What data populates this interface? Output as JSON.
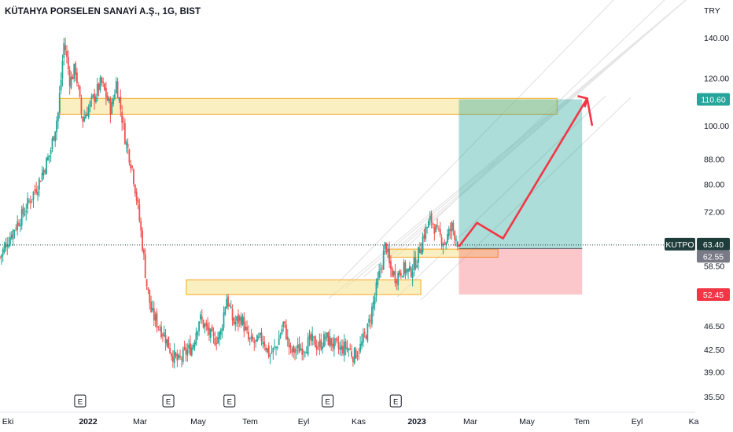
{
  "header": {
    "title": "KÜTAHYA PORSELEN SANAYİ A.Ş., 1G, BIST"
  },
  "chart_data": {
    "type": "candlestick",
    "title": "KÜTAHYA PORSELEN SANAYİ A.Ş., 1G, BIST",
    "currency": "TRY",
    "scale": "log",
    "ylim": [
      34,
      165
    ],
    "y_ticks": [
      "140.00",
      "120.00",
      "100.00",
      "88.00",
      "80.00",
      "72.00",
      "58.50",
      "46.50",
      "42.50",
      "39.00",
      "35.50"
    ],
    "x_ticks": [
      {
        "label": "Eki",
        "bold": false
      },
      {
        "label": "2022",
        "bold": true
      },
      {
        "label": "Mar",
        "bold": false
      },
      {
        "label": "May",
        "bold": false
      },
      {
        "label": "Tem",
        "bold": false
      },
      {
        "label": "Eyl",
        "bold": false
      },
      {
        "label": "Kas",
        "bold": false
      },
      {
        "label": "2023",
        "bold": true
      },
      {
        "label": "Mar",
        "bold": false
      },
      {
        "label": "May",
        "bold": false
      },
      {
        "label": "Tem",
        "bold": false
      },
      {
        "label": "Eyl",
        "bold": false
      },
      {
        "label": "Ka",
        "bold": false
      }
    ],
    "price_labels": [
      {
        "id": "target",
        "value": "110.60",
        "price": 110.6,
        "color": "#26a69a"
      },
      {
        "id": "last",
        "symbol": "KUTPO",
        "value": "63.40",
        "price": 63.4,
        "color": "#1e3d3a"
      },
      {
        "id": "entry",
        "value": "62.55",
        "price": 62.55,
        "color": "#787b86"
      },
      {
        "id": "stop",
        "value": "52.45",
        "price": 52.45,
        "color": "#f23645"
      }
    ],
    "price_path": [
      [
        "2021-10-01",
        60.5
      ],
      [
        "2021-10-12",
        66
      ],
      [
        "2021-10-25",
        72
      ],
      [
        "2021-11-08",
        80
      ],
      [
        "2021-11-20",
        90
      ],
      [
        "2021-11-28",
        105
      ],
      [
        "2021-12-01",
        120
      ],
      [
        "2021-12-04",
        138
      ],
      [
        "2021-12-10",
        118
      ],
      [
        "2021-12-15",
        125
      ],
      [
        "2021-12-22",
        102
      ],
      [
        "2022-01-01",
        110
      ],
      [
        "2022-01-10",
        118
      ],
      [
        "2022-01-15",
        112
      ],
      [
        "2022-01-20",
        106
      ],
      [
        "2022-01-25",
        118
      ],
      [
        "2022-02-03",
        95
      ],
      [
        "2022-02-10",
        85
      ],
      [
        "2022-02-18",
        68
      ],
      [
        "2022-02-24",
        55
      ],
      [
        "2022-03-01",
        49
      ],
      [
        "2022-03-07",
        47
      ],
      [
        "2022-03-14",
        45
      ],
      [
        "2022-03-21",
        42
      ],
      [
        "2022-03-28",
        40.5
      ],
      [
        "2022-04-04",
        42
      ],
      [
        "2022-04-11",
        43
      ],
      [
        "2022-04-18",
        48
      ],
      [
        "2022-04-25",
        46
      ],
      [
        "2022-05-02",
        44
      ],
      [
        "2022-05-09",
        45
      ],
      [
        "2022-05-15",
        52
      ],
      [
        "2022-05-22",
        47
      ],
      [
        "2022-05-30",
        48
      ],
      [
        "2022-06-06",
        44
      ],
      [
        "2022-06-13",
        43.5
      ],
      [
        "2022-06-20",
        44.5
      ],
      [
        "2022-06-27",
        41.5
      ],
      [
        "2022-07-04",
        43
      ],
      [
        "2022-07-11",
        47
      ],
      [
        "2022-07-18",
        42
      ],
      [
        "2022-07-25",
        42.5
      ],
      [
        "2022-08-01",
        43
      ],
      [
        "2022-08-08",
        44
      ],
      [
        "2022-08-15",
        43
      ],
      [
        "2022-08-22",
        44.5
      ],
      [
        "2022-08-29",
        43.5
      ],
      [
        "2022-09-05",
        42.5
      ],
      [
        "2022-09-12",
        43
      ],
      [
        "2022-09-19",
        41.5
      ],
      [
        "2022-09-26",
        43
      ],
      [
        "2022-10-03",
        46
      ],
      [
        "2022-10-10",
        52
      ],
      [
        "2022-10-17",
        59
      ],
      [
        "2022-10-21",
        64
      ],
      [
        "2022-10-25",
        58
      ],
      [
        "2022-10-31",
        56
      ],
      [
        "2022-11-07",
        58
      ],
      [
        "2022-11-14",
        57
      ],
      [
        "2022-11-21",
        60
      ],
      [
        "2022-11-28",
        66
      ],
      [
        "2022-12-05",
        70
      ],
      [
        "2022-12-12",
        66
      ],
      [
        "2022-12-19",
        64
      ],
      [
        "2022-12-26",
        68
      ],
      [
        "2023-01-02",
        63.4
      ]
    ],
    "zones": [
      {
        "from": "2021-11-30",
        "to": "2023-04-10",
        "low": 104.5,
        "high": 111
      },
      {
        "from": "2022-04-05",
        "to": "2022-11-25",
        "low": 52.45,
        "high": 55.5
      },
      {
        "from": "2022-10-23",
        "to": "2023-02-10",
        "low": 60.5,
        "high": 62.4
      }
    ],
    "position": {
      "from": "2023-01-02",
      "to": "2023-05-05",
      "entry": 62.55,
      "target": 110.6,
      "stop": 52.45
    },
    "projection": [
      [
        "2023-01-02",
        63
      ],
      [
        "2023-01-20",
        69
      ],
      [
        "2023-02-15",
        65
      ],
      [
        "2023-05-10",
        111
      ],
      [
        "2023-05-15",
        100
      ]
    ],
    "earnings": [
      "2021-12-20",
      "2022-03-18",
      "2022-05-18",
      "2022-08-24",
      "2022-10-31"
    ]
  }
}
